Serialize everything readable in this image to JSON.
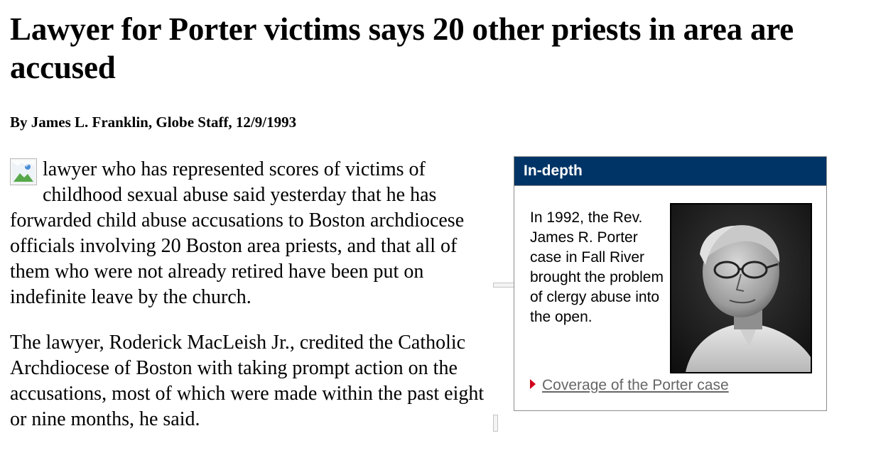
{
  "article": {
    "headline": "Lawyer for Porter victims says 20 other priests in area are accused",
    "byline": "By James L. Franklin, Globe Staff, 12/9/1993",
    "dropcap_icon": "broken-image-icon",
    "paragraphs": [
      "lawyer who has represented scores of victims of childhood sexual abuse said yesterday that he has forwarded child abuse accusations to Boston archdiocese officials involving 20 Boston area priests, and that all of them who were not already retired have been put on indefinite leave by the church.",
      "The lawyer, Roderick MacLeish Jr., credited the Catholic Archdiocese of Boston with taking prompt action on the accusations, most of which were made within the past eight or nine months, he said."
    ]
  },
  "sidebar": {
    "header": "In-depth",
    "text": "In 1992, the Rev. James R. Porter case in Fall River brought the problem of clergy abuse into the open.",
    "link_icon": "red-arrow-icon",
    "link_label": "Coverage of the Porter case",
    "colors": {
      "header_bg": "#003466",
      "arrow": "#d0021b",
      "link": "#666666"
    }
  }
}
